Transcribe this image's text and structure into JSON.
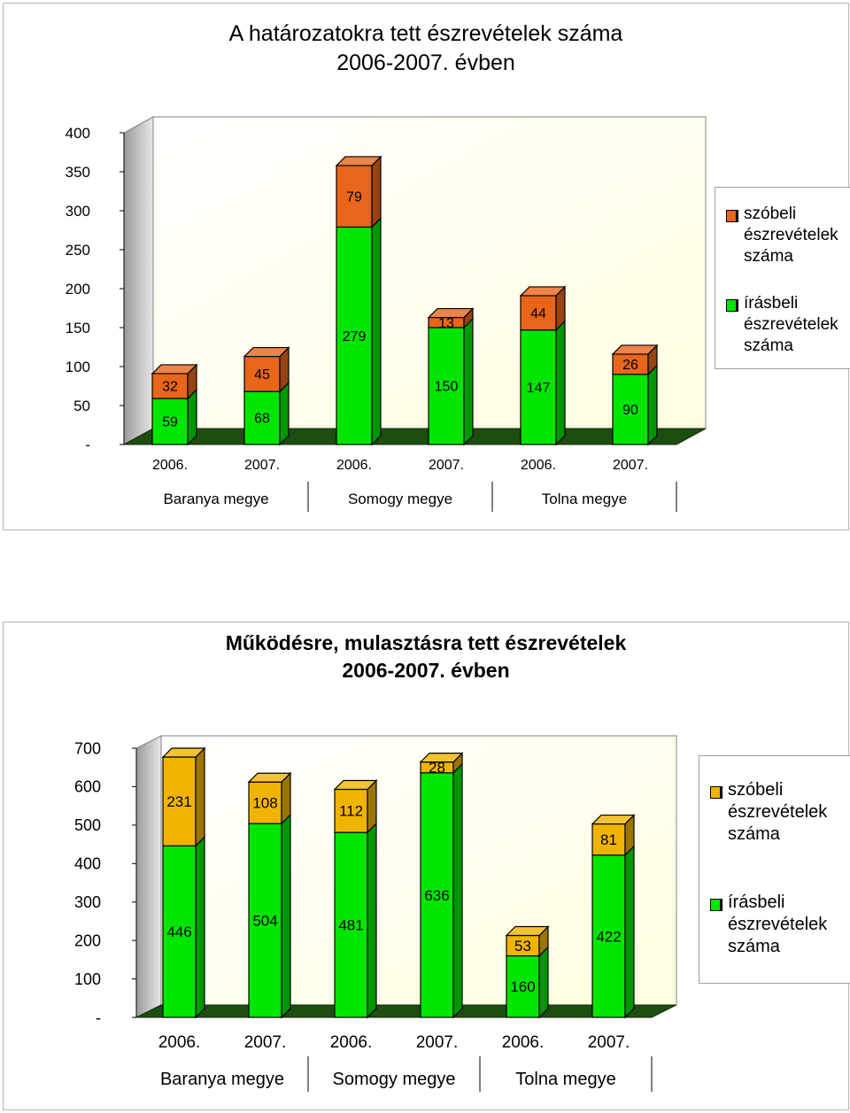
{
  "chart_data": [
    {
      "type": "bar",
      "stacked": true,
      "three_d": true,
      "title": "A határozatokra tett észrevételek száma 2006-2007. évben",
      "title_lines": [
        "A határozatokra tett észrevételek száma",
        "2006-2007. évben"
      ],
      "categories": [
        "2006.",
        "2007.",
        "2006.",
        "2007.",
        "2006.",
        "2007."
      ],
      "groups": [
        "Baranya megye",
        "Somogy megye",
        "Tolna megye"
      ],
      "ylim": [
        0,
        400
      ],
      "yticks": [
        {
          "value": 0,
          "label": "-"
        },
        {
          "value": 50,
          "label": "50"
        },
        {
          "value": 100,
          "label": "100"
        },
        {
          "value": 150,
          "label": "150"
        },
        {
          "value": 200,
          "label": "200"
        },
        {
          "value": 250,
          "label": "250"
        },
        {
          "value": 300,
          "label": "300"
        },
        {
          "value": 350,
          "label": "350"
        },
        {
          "value": 400,
          "label": "400"
        }
      ],
      "grid": false,
      "legend_position": "right",
      "series": [
        {
          "name": "írásbeli észrevételek száma",
          "values": [
            59,
            68,
            279,
            150,
            147,
            90
          ],
          "color": "#00e600"
        },
        {
          "name": "szóbeli észrevételek száma",
          "values": [
            32,
            45,
            79,
            13,
            44,
            26
          ],
          "color": "#e8651a"
        }
      ],
      "legend_order": [
        "szóbeli észrevételek száma",
        "írásbeli észrevételek száma"
      ],
      "colors": {
        "wall": "#ffffe0",
        "floor": "#1e4d10",
        "legend_accent_1": "#e8651a",
        "legend_accent_2": "#00e600"
      }
    },
    {
      "type": "bar",
      "stacked": true,
      "three_d": true,
      "title": "Működésre, mulasztásra tett észrevételek 2006-2007. évben",
      "title_lines": [
        "Működésre, mulasztásra tett észrevételek",
        "2006-2007. évben"
      ],
      "categories": [
        "2006.",
        "2007.",
        "2006.",
        "2007.",
        "2006.",
        "2007."
      ],
      "groups": [
        "Baranya megye",
        "Somogy megye",
        "Tolna megye"
      ],
      "ylim": [
        0,
        700
      ],
      "yticks": [
        {
          "value": 0,
          "label": "-"
        },
        {
          "value": 100,
          "label": "100"
        },
        {
          "value": 200,
          "label": "200"
        },
        {
          "value": 300,
          "label": "300"
        },
        {
          "value": 400,
          "label": "400"
        },
        {
          "value": 500,
          "label": "500"
        },
        {
          "value": 600,
          "label": "600"
        },
        {
          "value": 700,
          "label": "700"
        }
      ],
      "grid": false,
      "legend_position": "right",
      "series": [
        {
          "name": "írásbeli észrevételek száma",
          "values": [
            446,
            504,
            481,
            636,
            160,
            422
          ],
          "color": "#00e600"
        },
        {
          "name": "szóbeli észrevételek száma",
          "values": [
            231,
            108,
            112,
            28,
            53,
            81
          ],
          "color": "#f0b400"
        }
      ],
      "legend_order": [
        "szóbeli észrevételek száma",
        "írásbeli észrevételek száma"
      ],
      "colors": {
        "wall": "#ffffe0",
        "floor": "#1e4d10"
      }
    }
  ]
}
